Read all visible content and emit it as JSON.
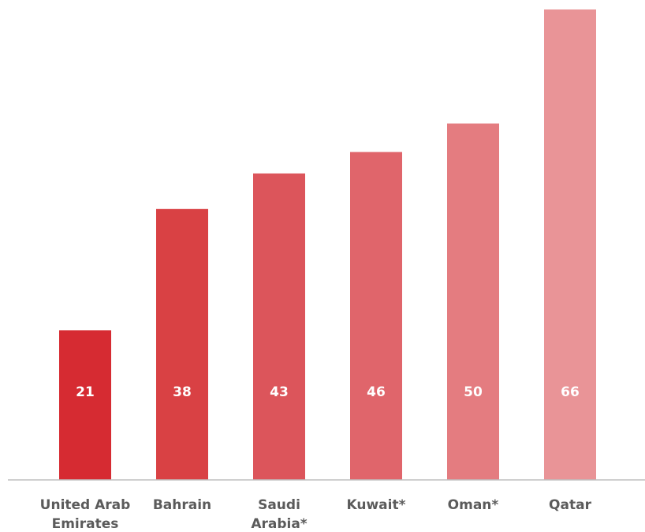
{
  "chart_data": {
    "type": "bar",
    "title": "",
    "xlabel": "",
    "ylabel": "",
    "ylim": [
      0,
      66
    ],
    "grid": false,
    "legend": "none",
    "categories": [
      [
        "United Arab",
        "Emirates"
      ],
      [
        "Bahrain"
      ],
      [
        "Saudi",
        "Arabia*"
      ],
      [
        "Kuwait*"
      ],
      [
        "Oman*"
      ],
      [
        "Qatar"
      ]
    ],
    "values": [
      21,
      38,
      43,
      46,
      50,
      66
    ],
    "colors": [
      "#d62b32",
      "#d94144",
      "#dc555b",
      "#e0656b",
      "#e47c80",
      "#e99497"
    ],
    "label_color": "#ffffff",
    "category_label_color": "#5b5b5b",
    "baseline_color": "#bfbfbf"
  }
}
